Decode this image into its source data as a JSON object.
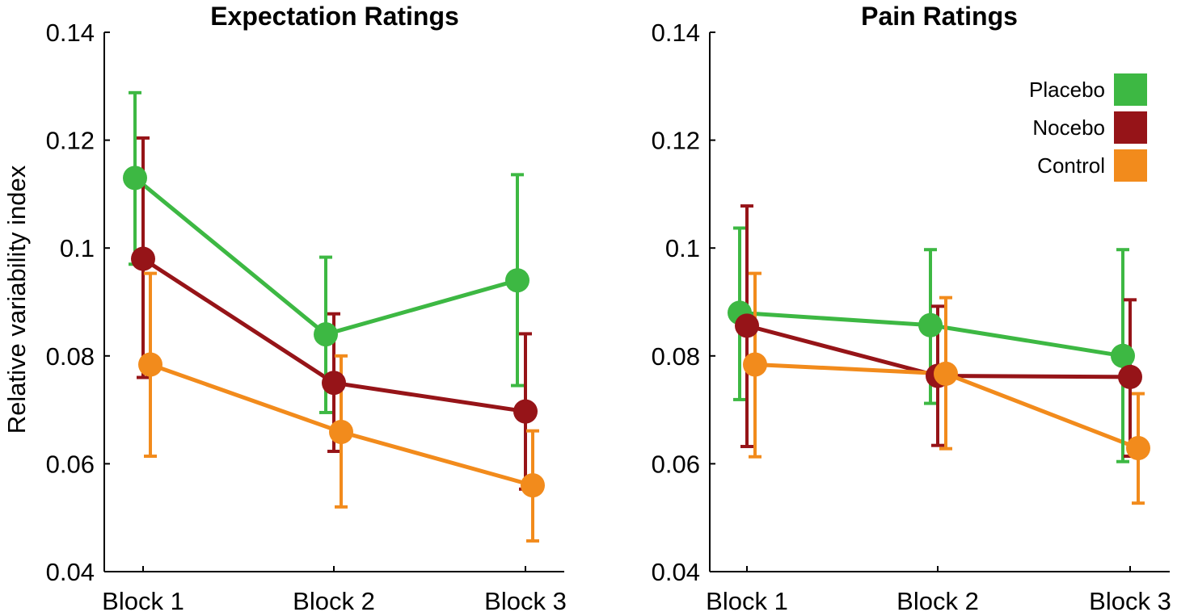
{
  "chart_data": [
    {
      "type": "line",
      "title": "Expectation Ratings",
      "xlabel": "",
      "ylabel": "Relative variability index",
      "categories": [
        "Block 1",
        "Block 2",
        "Block 3"
      ],
      "ylim": [
        0.04,
        0.14
      ],
      "yticks": [
        0.04,
        0.06,
        0.08,
        0.1,
        0.12,
        0.14
      ],
      "ytick_labels": [
        "0.04",
        "0.06",
        "0.08",
        "0.1",
        "0.12",
        "0.14"
      ],
      "error_bars": true,
      "legend": null,
      "series": [
        {
          "name": "Placebo",
          "color": "#3db843",
          "values": [
            0.113,
            0.084,
            0.094
          ],
          "err_low": [
            0.097,
            0.0695,
            0.0745
          ],
          "err_high": [
            0.1288,
            0.0983,
            0.1136
          ]
        },
        {
          "name": "Nocebo",
          "color": "#961418",
          "values": [
            0.098,
            0.075,
            0.0697
          ],
          "err_low": [
            0.076,
            0.0623,
            0.0553
          ],
          "err_high": [
            0.1204,
            0.0878,
            0.0841
          ]
        },
        {
          "name": "Control",
          "color": "#f28b1c",
          "values": [
            0.0784,
            0.0659,
            0.056
          ],
          "err_low": [
            0.0614,
            0.052,
            0.0457
          ],
          "err_high": [
            0.0953,
            0.08,
            0.0661
          ]
        }
      ]
    },
    {
      "type": "line",
      "title": "Pain Ratings",
      "xlabel": "",
      "ylabel": "",
      "categories": [
        "Block 1",
        "Block 2",
        "Block 3"
      ],
      "ylim": [
        0.04,
        0.14
      ],
      "yticks": [
        0.04,
        0.06,
        0.08,
        0.1,
        0.12,
        0.14
      ],
      "ytick_labels": [
        "0.04",
        "0.06",
        "0.08",
        "0.1",
        "0.12",
        "0.14"
      ],
      "error_bars": true,
      "legend": {
        "placement": "top-right",
        "entries": [
          {
            "label": "Placebo",
            "color": "#3db843"
          },
          {
            "label": "Nocebo",
            "color": "#961418"
          },
          {
            "label": "Control",
            "color": "#f28b1c"
          }
        ]
      },
      "series": [
        {
          "name": "Placebo",
          "color": "#3db843",
          "values": [
            0.088,
            0.0857,
            0.08
          ],
          "err_low": [
            0.0719,
            0.0712,
            0.0604
          ],
          "err_high": [
            0.1037,
            0.0997,
            0.0997
          ]
        },
        {
          "name": "Nocebo",
          "color": "#961418",
          "values": [
            0.0856,
            0.0763,
            0.0761
          ],
          "err_low": [
            0.0632,
            0.0634,
            0.0614
          ],
          "err_high": [
            0.1078,
            0.0892,
            0.0904
          ]
        },
        {
          "name": "Control",
          "color": "#f28b1c",
          "values": [
            0.0784,
            0.0767,
            0.0629
          ],
          "err_low": [
            0.0613,
            0.0628,
            0.0527
          ],
          "err_high": [
            0.0953,
            0.0908,
            0.073
          ]
        }
      ]
    }
  ]
}
